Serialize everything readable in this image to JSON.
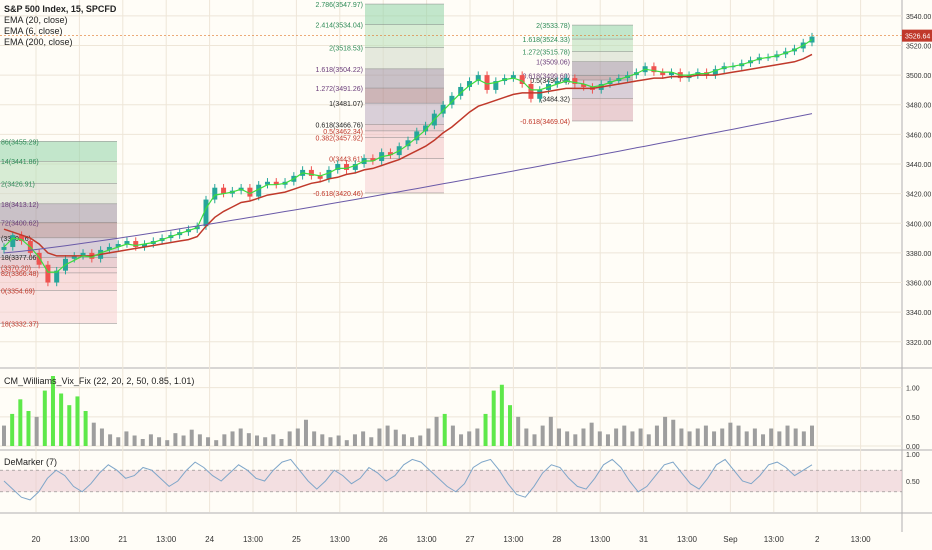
{
  "chart_data": {
    "type": "candlestick",
    "title": "S&P 500 Index, 15, SPCFD",
    "indicators": [
      "EMA (20, close)",
      "EMA (6, close)",
      "EMA (200, close)"
    ],
    "last_price": "3526.64",
    "main_pane": {
      "ylim": [
        3305,
        3548
      ],
      "y_ticks": [
        "3540.00",
        "3520.00",
        "3500.00",
        "3480.00",
        "3460.00",
        "3440.00",
        "3420.00",
        "3400.00",
        "3380.00",
        "3360.00",
        "3340.00",
        "3320.00"
      ],
      "close_series": [
        3384,
        3392,
        3388,
        3380,
        3372,
        3360,
        3368,
        3376,
        3378,
        3380,
        3376,
        3382,
        3384,
        3386,
        3388,
        3384,
        3386,
        3388,
        3390,
        3392,
        3394,
        3396,
        3398,
        3416,
        3424,
        3420,
        3422,
        3424,
        3418,
        3426,
        3428,
        3426,
        3428,
        3432,
        3436,
        3432,
        3430,
        3436,
        3440,
        3436,
        3440,
        3444,
        3442,
        3448,
        3446,
        3452,
        3456,
        3462,
        3466,
        3474,
        3480,
        3486,
        3492,
        3496,
        3500,
        3490,
        3496,
        3498,
        3500,
        3494,
        3484,
        3490,
        3494,
        3496,
        3498,
        3494,
        3492,
        3490,
        3494,
        3496,
        3498,
        3500,
        3502,
        3506,
        3502,
        3500,
        3502,
        3498,
        3500,
        3502,
        3500,
        3504,
        3506,
        3506,
        3508,
        3510,
        3512,
        3512,
        3514,
        3516,
        3518,
        3522,
        3526
      ],
      "ema6": [
        3384,
        3390,
        3389,
        3384,
        3377,
        3367,
        3367,
        3372,
        3375,
        3378,
        3377,
        3380,
        3382,
        3384,
        3386,
        3385,
        3386,
        3387,
        3389,
        3391,
        3393,
        3395,
        3397,
        3410,
        3419,
        3420,
        3421,
        3423,
        3420,
        3423,
        3426,
        3426,
        3427,
        3430,
        3434,
        3433,
        3432,
        3434,
        3437,
        3437,
        3439,
        3442,
        3442,
        3445,
        3446,
        3449,
        3453,
        3458,
        3463,
        3470,
        3476,
        3482,
        3488,
        3493,
        3497,
        3494,
        3495,
        3497,
        3498,
        3496,
        3490,
        3490,
        3492,
        3494,
        3496,
        3495,
        3494,
        3492,
        3493,
        3495,
        3497,
        3499,
        3501,
        3504,
        3503,
        3502,
        3502,
        3500,
        3500,
        3501,
        3501,
        3503,
        3505,
        3506,
        3507,
        3509,
        3511,
        3512,
        3513,
        3515,
        3517,
        3520,
        3524
      ],
      "ema20": [
        3396,
        3394,
        3392,
        3390,
        3386,
        3380,
        3378,
        3378,
        3378,
        3378,
        3378,
        3379,
        3380,
        3381,
        3382,
        3383,
        3384,
        3385,
        3386,
        3387,
        3388,
        3389,
        3391,
        3398,
        3404,
        3408,
        3411,
        3414,
        3415,
        3417,
        3419,
        3420,
        3421,
        3423,
        3425,
        3427,
        3428,
        3430,
        3431,
        3433,
        3434,
        3436,
        3437,
        3439,
        3441,
        3443,
        3446,
        3449,
        3452,
        3456,
        3461,
        3465,
        3470,
        3475,
        3479,
        3481,
        3483,
        3485,
        3487,
        3488,
        3488,
        3488,
        3489,
        3490,
        3491,
        3491,
        3491,
        3491,
        3492,
        3493,
        3494,
        3495,
        3496,
        3497,
        3498,
        3498,
        3499,
        3499,
        3499,
        3500,
        3500,
        3500,
        3501,
        3502,
        3503,
        3504,
        3505,
        3506,
        3507,
        3508,
        3509,
        3511,
        3514
      ],
      "ema200_start": 3380,
      "ema200_end": 3474,
      "fib_sets": [
        {
          "labels": [
            "86(3455.29)",
            "14(3441.86)",
            "2(3426.91)",
            "18(3413.12)",
            "72(3400.62)",
            "(3390.16)",
            "18(3377.06)",
            "(3370.20)",
            "82(3366.48)",
            "0(3354.69)",
            "18(3332.37)"
          ],
          "values": [
            3455.29,
            3441.86,
            3426.91,
            3413.12,
            3400.62,
            3390.16,
            3377.06,
            3370.2,
            3366.48,
            3354.69,
            3332.37
          ]
        },
        {
          "labels": [
            "2.786(3547.97)",
            "2.414(3534.04)",
            "2(3518.53)",
            "1.618(3504.22)",
            "1.272(3491.26)",
            "1(3481.07)",
            "0.618(3466.76)",
            "0.5(3462.34)",
            "0.382(3457.92)",
            "0(3443.61)",
            "-0.618(3420.46)"
          ],
          "values": [
            3547.97,
            3534.04,
            3518.53,
            3504.22,
            3491.26,
            3481.07,
            3466.76,
            3462.34,
            3457.92,
            3443.61,
            3420.46
          ]
        },
        {
          "labels": [
            "2(3533.78)",
            "1.618(3524.33)",
            "1.272(3515.78)",
            "1(3509.06)",
            "0.618(3499.60)",
            "0.5(3496.68)",
            "(3484.32)",
            "-0.618(3469.04)"
          ],
          "values": [
            3533.78,
            3524.33,
            3515.78,
            3509.06,
            3499.6,
            3496.68,
            3484.32,
            3469.04
          ]
        }
      ]
    },
    "vix_pane": {
      "title": "CM_Williams_Vix_Fix (22, 20, 2, 50, 0.85, 1.01)",
      "ylim": [
        0,
        1.2
      ],
      "y_ticks": [
        "1.00",
        "0.50",
        "0.00"
      ],
      "values": [
        0.35,
        0.55,
        0.8,
        0.6,
        0.5,
        0.95,
        1.2,
        0.9,
        0.7,
        0.85,
        0.6,
        0.4,
        0.3,
        0.2,
        0.15,
        0.25,
        0.18,
        0.12,
        0.2,
        0.15,
        0.1,
        0.22,
        0.18,
        0.28,
        0.2,
        0.15,
        0.1,
        0.2,
        0.25,
        0.3,
        0.22,
        0.18,
        0.15,
        0.2,
        0.12,
        0.25,
        0.3,
        0.45,
        0.25,
        0.2,
        0.15,
        0.18,
        0.1,
        0.2,
        0.25,
        0.15,
        0.3,
        0.35,
        0.28,
        0.2,
        0.15,
        0.18,
        0.3,
        0.5,
        0.55,
        0.35,
        0.2,
        0.25,
        0.3,
        0.55,
        0.95,
        1.05,
        0.7,
        0.5,
        0.3,
        0.2,
        0.35,
        0.5,
        0.3,
        0.25,
        0.2,
        0.3,
        0.4,
        0.25,
        0.2,
        0.3,
        0.35,
        0.25,
        0.3,
        0.2,
        0.35,
        0.5,
        0.45,
        0.3,
        0.25,
        0.3,
        0.35,
        0.25,
        0.3,
        0.4,
        0.35,
        0.25,
        0.3,
        0.2,
        0.3,
        0.25,
        0.35,
        0.3,
        0.25,
        0.35
      ],
      "highlight_threshold": 0.55
    },
    "demarker_pane": {
      "title": "DeMarker (7)",
      "ylim": [
        0,
        1
      ],
      "y_ticks": [
        "1.00",
        "0.50"
      ],
      "band": [
        0.3,
        0.7
      ],
      "values": [
        0.5,
        0.35,
        0.2,
        0.15,
        0.3,
        0.55,
        0.7,
        0.6,
        0.4,
        0.3,
        0.45,
        0.65,
        0.8,
        0.7,
        0.55,
        0.6,
        0.75,
        0.7,
        0.55,
        0.4,
        0.5,
        0.7,
        0.85,
        0.75,
        0.6,
        0.5,
        0.65,
        0.8,
        0.7,
        0.55,
        0.5,
        0.7,
        0.85,
        0.9,
        0.7,
        0.5,
        0.35,
        0.5,
        0.7,
        0.6,
        0.45,
        0.55,
        0.75,
        0.65,
        0.5,
        0.6,
        0.8,
        0.9,
        0.85,
        0.7,
        0.55,
        0.4,
        0.3,
        0.45,
        0.75,
        0.85,
        0.9,
        0.7,
        0.45,
        0.25,
        0.2,
        0.4,
        0.65,
        0.8,
        0.75,
        0.55,
        0.4,
        0.35,
        0.55,
        0.8,
        0.9,
        0.75,
        0.5,
        0.3,
        0.4,
        0.6,
        0.8,
        0.85,
        0.65,
        0.45,
        0.35,
        0.55,
        0.8,
        0.9,
        0.7,
        0.5,
        0.45,
        0.6,
        0.8,
        0.85,
        0.75,
        0.6,
        0.7,
        0.8
      ]
    },
    "x_ticks": [
      "20",
      "13:00",
      "21",
      "13:00",
      "24",
      "13:00",
      "25",
      "13:00",
      "26",
      "13:00",
      "27",
      "13:00",
      "28",
      "13:00",
      "31",
      "13:00",
      "Sep",
      "13:00",
      "2",
      "13:00"
    ]
  }
}
